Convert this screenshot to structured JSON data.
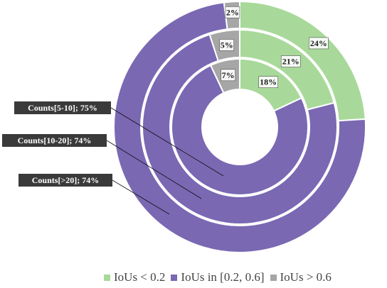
{
  "chart_data": {
    "type": "pie",
    "subtype": "nested-donut",
    "categories": [
      "IoUs < 0.2",
      "IoUs in [0.2, 0.6]",
      "IoUs > 0.6"
    ],
    "colors": [
      "#a8d99a",
      "#7a68b3",
      "#a6a6a6"
    ],
    "legend_position": "bottom",
    "rings": [
      {
        "name": "Counts[5-10]; 75%",
        "order": "inner",
        "values": [
          18,
          75,
          7
        ],
        "labels": [
          "18%",
          "",
          "7%"
        ]
      },
      {
        "name": "Counts[10-20]; 74%",
        "order": "middle",
        "values": [
          21,
          74,
          5
        ],
        "labels": [
          "21%",
          "",
          "5%"
        ]
      },
      {
        "name": "Counts[>20]; 74%",
        "order": "outer",
        "values": [
          24,
          74,
          2
        ],
        "labels": [
          "24%",
          "",
          "2%"
        ]
      }
    ]
  },
  "legend": {
    "items": [
      {
        "label": "IoUs < 0.2",
        "color": "#a8d99a"
      },
      {
        "label": "IoUs in [0.2, 0.6]",
        "color": "#7a68b3"
      },
      {
        "label": "IoUs > 0.6",
        "color": "#a6a6a6"
      }
    ]
  }
}
